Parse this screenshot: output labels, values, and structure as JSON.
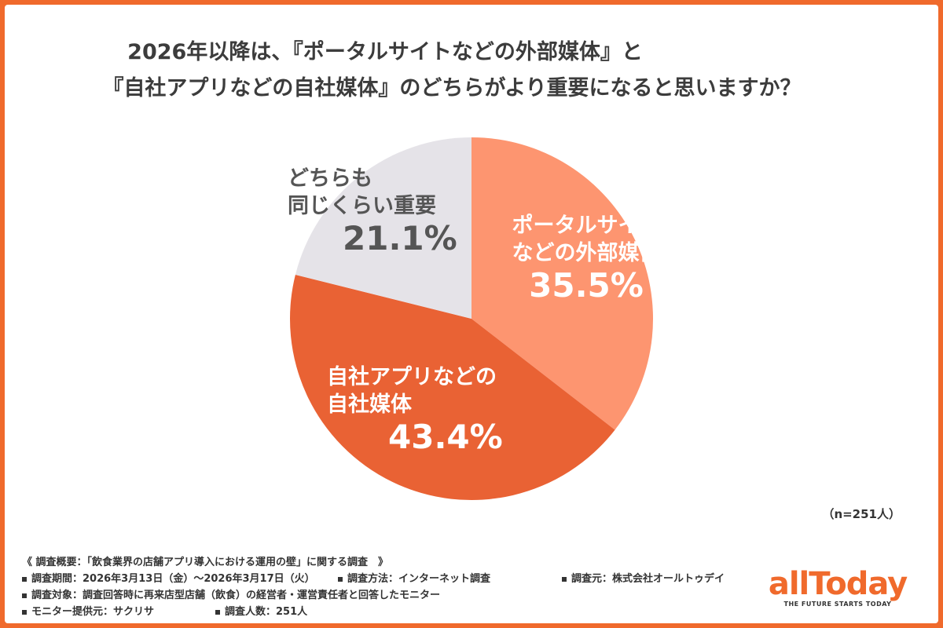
{
  "chart_data": {
    "type": "pie",
    "title_lines": [
      "2026年以降は、『ポータルサイトなどの外部媒体』と",
      "『自社アプリなどの自社媒体』のどちらがより重要になると思いますか？"
    ],
    "slices": [
      {
        "name_lines": [
          "ポータルサイト",
          "などの外部媒体"
        ],
        "value": 35.5,
        "label": "35.5%",
        "color": "#fd9570"
      },
      {
        "name_lines": [
          "自社アプリなどの",
          "自社媒体"
        ],
        "value": 43.4,
        "label": "43.4%",
        "color": "#e96234"
      },
      {
        "name_lines": [
          "どちらも",
          "同じくらい重要"
        ],
        "value": 21.1,
        "label": "21.1%",
        "color": "#e5e3e8"
      }
    ],
    "sample_note": "（n=251人）"
  },
  "survey": {
    "heading": "《 調査概要：「飲食業界の店舗アプリ導入における運用の壁」に関する調査　》",
    "period": "調査期間：2026年3月13日（金）〜2026年3月17日（火）",
    "method": "調査方法：インターネット調査",
    "source": "調査元：株式会社オールトゥデイ",
    "target": "調査対象：調査回答時に再来店型店舗（飲食）の経営者・運営責任者と回答したモニター",
    "provider": "モニター提供元：サクリサ",
    "count": "調査人数：251人"
  },
  "logo": {
    "brand": "allToday",
    "tagline": "THE FUTURE STARTS TODAY"
  },
  "colors": {
    "frame": "#f06a2c",
    "title": "#3c3c3c"
  }
}
